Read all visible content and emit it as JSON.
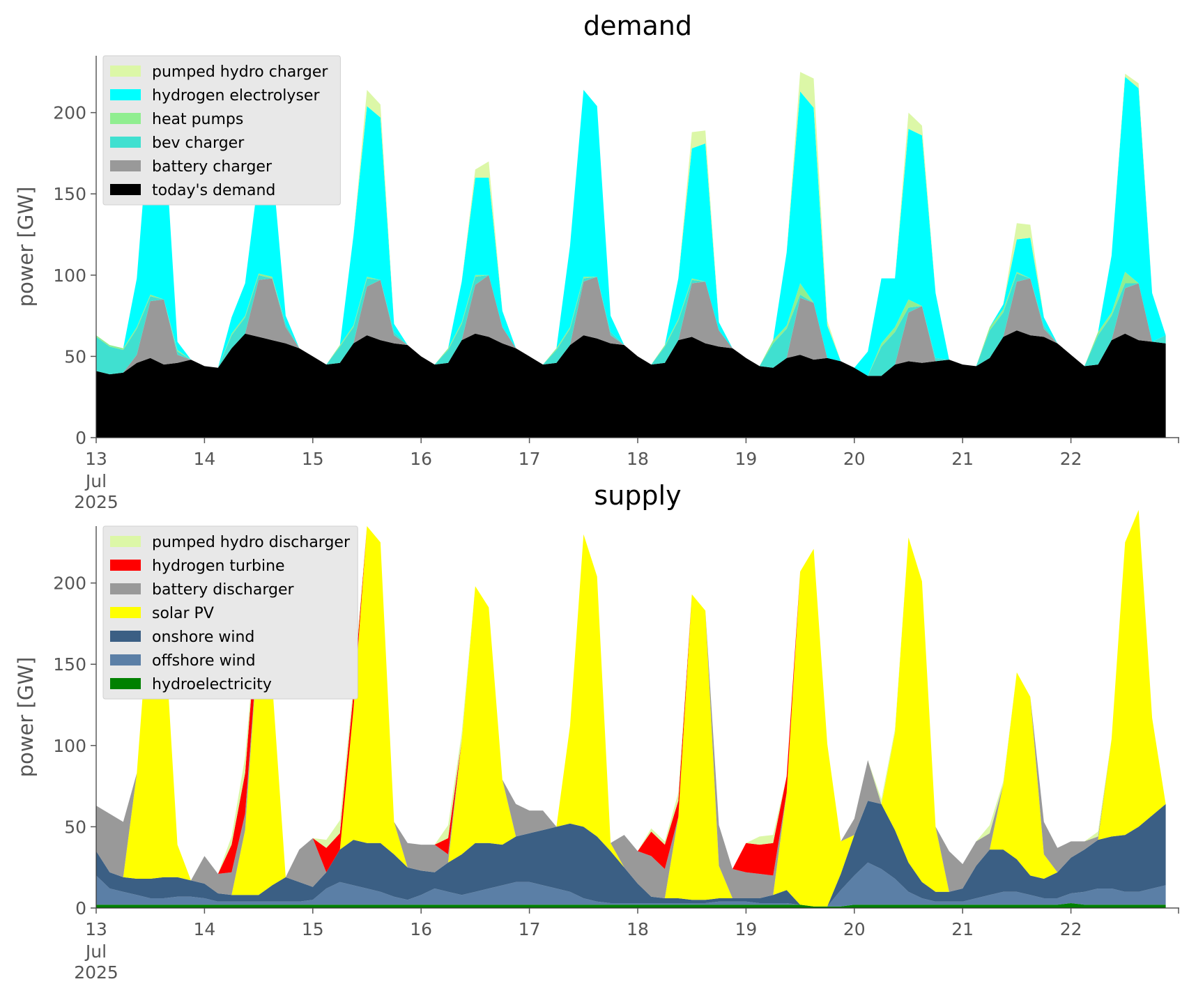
{
  "chart_data": [
    {
      "type": "area",
      "title": "demand",
      "ylabel": "power [GW]",
      "xlabel": "",
      "ylim": [
        0,
        235
      ],
      "yticks": [
        0,
        50,
        100,
        150,
        200
      ],
      "xlim": [
        13,
        23
      ],
      "xticks": [
        {
          "x": 13,
          "label": "13",
          "sub1": "Jul",
          "sub2": "2025"
        },
        {
          "x": 14,
          "label": "14"
        },
        {
          "x": 15,
          "label": "15"
        },
        {
          "x": 16,
          "label": "16"
        },
        {
          "x": 17,
          "label": "17"
        },
        {
          "x": 18,
          "label": "18"
        },
        {
          "x": 19,
          "label": "19"
        },
        {
          "x": 20,
          "label": "20"
        },
        {
          "x": 21,
          "label": "21"
        },
        {
          "x": 22,
          "label": "22"
        }
      ],
      "x_start": "2025-07-13",
      "step_hours": 3,
      "legend_position": "upper-left",
      "stacked": true,
      "series": [
        {
          "name": "today's demand",
          "color": "#000000",
          "values": [
            41,
            39,
            40,
            46,
            49,
            45,
            46,
            48,
            44,
            43,
            55,
            64,
            62,
            60,
            58,
            55,
            50,
            45,
            46,
            58,
            63,
            60,
            58,
            57,
            50,
            45,
            46,
            60,
            64,
            62,
            58,
            55,
            50,
            45,
            46,
            57,
            63,
            61,
            58,
            57,
            50,
            45,
            46,
            60,
            62,
            58,
            56,
            55,
            49,
            44,
            43,
            49,
            51,
            48,
            49,
            47,
            43,
            38,
            38,
            45,
            47,
            46,
            47,
            48,
            45,
            44,
            49,
            62,
            66,
            63,
            62,
            58,
            51,
            44,
            45,
            60,
            64,
            60,
            59,
            58
          ]
        },
        {
          "name": "battery charger",
          "color": "#999999",
          "values": [
            0,
            0,
            0,
            5,
            35,
            40,
            5,
            0,
            0,
            0,
            0,
            0,
            35,
            38,
            10,
            0,
            0,
            0,
            0,
            0,
            30,
            37,
            5,
            0,
            0,
            0,
            0,
            0,
            30,
            38,
            10,
            0,
            0,
            0,
            0,
            0,
            33,
            38,
            5,
            0,
            0,
            0,
            0,
            0,
            33,
            38,
            10,
            0,
            0,
            0,
            0,
            0,
            35,
            35,
            0,
            0,
            0,
            0,
            0,
            0,
            30,
            35,
            0,
            0,
            0,
            0,
            0,
            0,
            30,
            35,
            5,
            0,
            0,
            0,
            0,
            0,
            28,
            35,
            0,
            0
          ]
        },
        {
          "name": "bev charger",
          "color": "#40e0d0",
          "values": [
            21,
            17,
            14,
            16,
            3,
            0,
            2,
            0,
            0,
            0,
            8,
            10,
            3,
            0,
            2,
            0,
            0,
            0,
            10,
            10,
            5,
            0,
            2,
            0,
            0,
            0,
            8,
            10,
            5,
            0,
            0,
            0,
            0,
            0,
            8,
            10,
            2,
            0,
            2,
            0,
            0,
            0,
            10,
            12,
            2,
            0,
            0,
            0,
            0,
            0,
            15,
            18,
            2,
            0,
            0,
            0,
            0,
            0,
            18,
            20,
            3,
            0,
            2,
            0,
            0,
            0,
            17,
            15,
            5,
            0,
            2,
            0,
            0,
            0,
            18,
            15,
            3,
            0,
            0,
            5
          ]
        },
        {
          "name": "heat pumps",
          "color": "#90ee90",
          "values": [
            1,
            1,
            1,
            1,
            1,
            0,
            1,
            0,
            0,
            0,
            1,
            1,
            1,
            1,
            0,
            0,
            0,
            0,
            1,
            1,
            1,
            0,
            0,
            0,
            0,
            0,
            1,
            1,
            1,
            0,
            0,
            0,
            0,
            0,
            1,
            1,
            1,
            0,
            0,
            0,
            0,
            0,
            1,
            1,
            1,
            0,
            0,
            0,
            0,
            0,
            2,
            2,
            7,
            0,
            0,
            0,
            0,
            0,
            2,
            3,
            5,
            0,
            0,
            0,
            0,
            0,
            2,
            2,
            1,
            0,
            0,
            0,
            0,
            0,
            2,
            2,
            7,
            0,
            0,
            0
          ]
        },
        {
          "name": "hydrogen electrolyser",
          "color": "#00ffff",
          "values": [
            0,
            0,
            0,
            30,
            115,
            110,
            5,
            0,
            0,
            0,
            10,
            20,
            60,
            70,
            5,
            0,
            0,
            0,
            0,
            55,
            105,
            100,
            5,
            0,
            0,
            0,
            0,
            25,
            60,
            60,
            10,
            0,
            0,
            0,
            0,
            50,
            115,
            105,
            10,
            0,
            0,
            0,
            0,
            25,
            80,
            85,
            5,
            0,
            0,
            0,
            0,
            45,
            118,
            120,
            20,
            0,
            0,
            15,
            40,
            30,
            105,
            105,
            40,
            0,
            0,
            0,
            0,
            3,
            20,
            25,
            5,
            0,
            0,
            0,
            0,
            35,
            120,
            120,
            30,
            0
          ]
        },
        {
          "name": "pumped hydro charger",
          "color": "#dcf7a7",
          "values": [
            0,
            0,
            0,
            0,
            0,
            0,
            0,
            0,
            0,
            0,
            0,
            0,
            0,
            0,
            0,
            0,
            0,
            0,
            0,
            0,
            10,
            8,
            0,
            0,
            0,
            0,
            0,
            0,
            5,
            10,
            0,
            0,
            0,
            0,
            0,
            0,
            0,
            0,
            0,
            0,
            0,
            0,
            0,
            0,
            10,
            8,
            0,
            0,
            0,
            0,
            0,
            0,
            12,
            18,
            3,
            0,
            0,
            0,
            0,
            0,
            10,
            6,
            0,
            0,
            0,
            0,
            0,
            0,
            10,
            8,
            0,
            0,
            0,
            0,
            0,
            0,
            2,
            3,
            0,
            0
          ]
        }
      ]
    },
    {
      "type": "area",
      "title": "supply",
      "ylabel": "power [GW]",
      "xlabel": "",
      "ylim": [
        0,
        235
      ],
      "yticks": [
        0,
        50,
        100,
        150,
        200
      ],
      "xlim": [
        13,
        23
      ],
      "xticks": [
        {
          "x": 13,
          "label": "13",
          "sub1": "Jul",
          "sub2": "2025"
        },
        {
          "x": 14,
          "label": "14"
        },
        {
          "x": 15,
          "label": "15"
        },
        {
          "x": 16,
          "label": "16"
        },
        {
          "x": 17,
          "label": "17"
        },
        {
          "x": 18,
          "label": "18"
        },
        {
          "x": 19,
          "label": "19"
        },
        {
          "x": 20,
          "label": "20"
        },
        {
          "x": 21,
          "label": "21"
        },
        {
          "x": 22,
          "label": "22"
        }
      ],
      "x_start": "2025-07-13",
      "step_hours": 3,
      "legend_position": "upper-left",
      "stacked": true,
      "series": [
        {
          "name": "hydroelectricity",
          "color": "#008000",
          "values": [
            2,
            2,
            2,
            2,
            2,
            2,
            2,
            2,
            2,
            2,
            2,
            2,
            2,
            2,
            2,
            2,
            2,
            2,
            2,
            2,
            2,
            2,
            2,
            2,
            2,
            2,
            2,
            2,
            2,
            2,
            2,
            2,
            2,
            2,
            2,
            2,
            2,
            2,
            2,
            2,
            2,
            2,
            2,
            2,
            2,
            2,
            2,
            2,
            2,
            2,
            2,
            2,
            2,
            1,
            1,
            1,
            2,
            2,
            2,
            2,
            2,
            2,
            2,
            2,
            2,
            2,
            2,
            2,
            2,
            2,
            2,
            2,
            3,
            2,
            2,
            2,
            2,
            2,
            2,
            2
          ]
        },
        {
          "name": "offshore wind",
          "color": "#5b7fa6",
          "values": [
            18,
            10,
            8,
            6,
            4,
            4,
            5,
            5,
            4,
            2,
            2,
            2,
            2,
            2,
            2,
            2,
            3,
            10,
            14,
            12,
            10,
            8,
            5,
            3,
            6,
            10,
            8,
            6,
            8,
            10,
            12,
            14,
            14,
            12,
            10,
            8,
            4,
            2,
            1,
            1,
            1,
            1,
            1,
            1,
            1,
            1,
            2,
            2,
            2,
            1,
            1,
            1,
            0,
            0,
            0,
            10,
            18,
            26,
            22,
            16,
            8,
            4,
            2,
            2,
            2,
            4,
            6,
            8,
            8,
            6,
            4,
            4,
            6,
            8,
            10,
            10,
            8,
            8,
            10,
            12
          ]
        },
        {
          "name": "onshore wind",
          "color": "#3b5f84",
          "values": [
            15,
            10,
            9,
            10,
            12,
            13,
            12,
            10,
            9,
            5,
            4,
            4,
            4,
            10,
            15,
            12,
            8,
            10,
            20,
            28,
            28,
            30,
            26,
            20,
            15,
            10,
            18,
            25,
            30,
            28,
            25,
            28,
            30,
            34,
            38,
            42,
            44,
            40,
            32,
            22,
            12,
            4,
            3,
            3,
            2,
            2,
            2,
            2,
            2,
            3,
            5,
            8,
            0,
            0,
            0,
            10,
            25,
            38,
            40,
            30,
            18,
            10,
            6,
            6,
            8,
            20,
            28,
            26,
            20,
            12,
            12,
            16,
            22,
            26,
            30,
            32,
            35,
            40,
            45,
            50
          ]
        },
        {
          "name": "solar PV",
          "color": "#ffff00",
          "values": [
            0,
            0,
            0,
            65,
            175,
            160,
            20,
            0,
            0,
            0,
            0,
            40,
            160,
            125,
            0,
            0,
            0,
            0,
            0,
            80,
            195,
            185,
            20,
            0,
            0,
            0,
            0,
            70,
            158,
            145,
            40,
            0,
            0,
            0,
            0,
            60,
            180,
            160,
            5,
            0,
            0,
            0,
            0,
            50,
            188,
            178,
            20,
            0,
            0,
            0,
            0,
            60,
            205,
            220,
            100,
            20,
            0,
            0,
            0,
            60,
            200,
            185,
            40,
            0,
            0,
            0,
            0,
            40,
            115,
            110,
            15,
            0,
            0,
            0,
            0,
            60,
            180,
            195,
            60,
            0
          ]
        },
        {
          "name": "battery discharger",
          "color": "#999999",
          "values": [
            28,
            36,
            34,
            0,
            0,
            0,
            0,
            0,
            17,
            12,
            14,
            10,
            0,
            0,
            0,
            20,
            30,
            0,
            0,
            0,
            0,
            0,
            0,
            15,
            16,
            17,
            5,
            0,
            0,
            0,
            0,
            20,
            14,
            12,
            0,
            0,
            0,
            0,
            0,
            20,
            20,
            25,
            18,
            0,
            0,
            0,
            25,
            18,
            16,
            15,
            12,
            0,
            0,
            0,
            0,
            0,
            10,
            25,
            0,
            0,
            0,
            0,
            0,
            25,
            15,
            15,
            10,
            0,
            0,
            0,
            20,
            15,
            10,
            5,
            2,
            0,
            0,
            0,
            0,
            0
          ]
        },
        {
          "name": "hydrogen turbine",
          "color": "#ff0000",
          "values": [
            0,
            0,
            0,
            0,
            0,
            0,
            0,
            0,
            0,
            0,
            17,
            25,
            20,
            0,
            0,
            0,
            0,
            15,
            10,
            10,
            0,
            0,
            0,
            0,
            0,
            0,
            10,
            0,
            0,
            0,
            0,
            0,
            0,
            0,
            0,
            0,
            0,
            0,
            0,
            0,
            0,
            15,
            15,
            10,
            0,
            0,
            0,
            0,
            18,
            18,
            20,
            10,
            0,
            0,
            0,
            0,
            0,
            0,
            0,
            0,
            0,
            0,
            0,
            0,
            0,
            0,
            0,
            0,
            0,
            0,
            0,
            0,
            0,
            0,
            0,
            0,
            0,
            0,
            0,
            0
          ]
        },
        {
          "name": "pumped hydro discharger",
          "color": "#dcf7a7",
          "values": [
            0,
            0,
            0,
            0,
            0,
            0,
            0,
            0,
            0,
            0,
            5,
            10,
            0,
            0,
            0,
            0,
            0,
            5,
            8,
            5,
            0,
            0,
            0,
            0,
            0,
            0,
            8,
            5,
            0,
            0,
            0,
            0,
            0,
            0,
            0,
            0,
            0,
            0,
            0,
            0,
            0,
            2,
            2,
            5,
            0,
            0,
            0,
            0,
            0,
            5,
            5,
            0,
            0,
            0,
            0,
            0,
            0,
            0,
            3,
            2,
            0,
            0,
            0,
            0,
            0,
            0,
            5,
            2,
            0,
            0,
            0,
            0,
            0,
            0,
            3,
            0,
            0,
            0,
            0,
            0
          ]
        }
      ]
    }
  ]
}
